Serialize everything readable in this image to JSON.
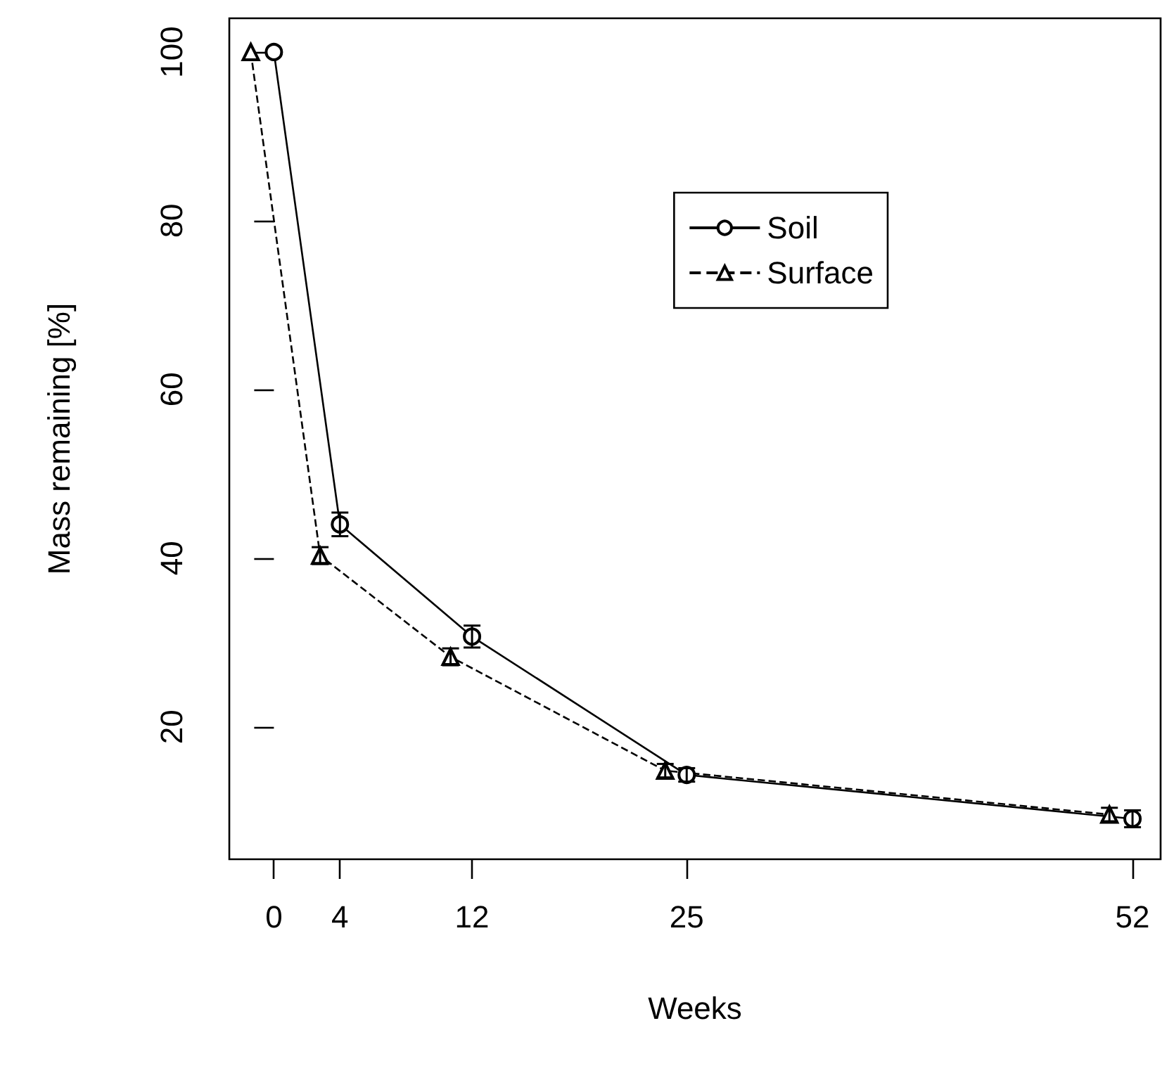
{
  "chart_data": {
    "type": "line",
    "xlabel": "Weeks",
    "ylabel": "Mass remaining [%]",
    "xlim": [
      -2.7,
      53.7
    ],
    "xticks": [
      0,
      4,
      12,
      25,
      52
    ],
    "ylim": [
      4.3,
      104
    ],
    "yticks": [
      20,
      40,
      60,
      80,
      100
    ],
    "grid": false,
    "legend": "top right",
    "series": [
      {
        "name": "Soil",
        "color": "#000000",
        "marker": "circle",
        "line_style": "solid",
        "x": [
          0,
          4,
          12,
          25,
          52
        ],
        "values": [
          100,
          44,
          30.7,
          14.3,
          9.1
        ],
        "errors": [
          null,
          1.4,
          1.3,
          0.8,
          1
        ]
      },
      {
        "name": "Surface",
        "color": "#000000",
        "marker": "triangle",
        "line_style": "dashed",
        "x": [
          -1.4,
          2.8,
          10.7,
          23.7,
          50.6
        ],
        "values": [
          100,
          40.3,
          28.3,
          14.8,
          9.6
        ],
        "errors": [
          null,
          1,
          1,
          0.8,
          0.8
        ]
      }
    ]
  }
}
